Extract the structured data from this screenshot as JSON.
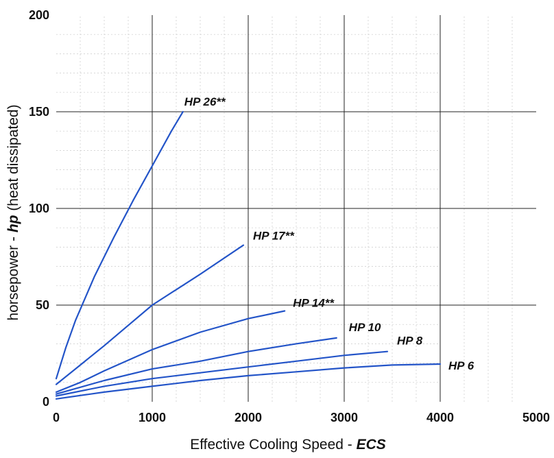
{
  "chart_data": {
    "type": "line",
    "xlim": [
      0,
      5000
    ],
    "ylim": [
      0,
      200
    ],
    "x_ticks": [
      "0",
      "1000",
      "2000",
      "3000",
      "4000",
      "5000"
    ],
    "y_ticks": [
      "0",
      "50",
      "100",
      "150",
      "200"
    ],
    "xlabel": {
      "prefix": "Effective Cooling Speed  - ",
      "emphasis": "ECS"
    },
    "ylabel": {
      "prefix": "horsepower - ",
      "emphasis": "hp",
      "suffix": "  (heat dissipated)"
    },
    "grid": true,
    "line_color": "#2354c8",
    "series": [
      {
        "name": "HP 26**",
        "x": [
          0,
          100,
          200,
          400,
          600,
          800,
          1000,
          1200,
          1320
        ],
        "y": [
          12,
          28,
          42,
          65,
          85,
          104,
          122,
          140,
          150
        ]
      },
      {
        "name": "HP 17**",
        "x": [
          0,
          200,
          500,
          1000,
          1500,
          1950
        ],
        "y": [
          9,
          17,
          29,
          50,
          66,
          81
        ]
      },
      {
        "name": "HP 14**",
        "x": [
          0,
          250,
          500,
          1000,
          1500,
          2000,
          2380
        ],
        "y": [
          5,
          10,
          16,
          27,
          36,
          43,
          47
        ]
      },
      {
        "name": "HP 10",
        "x": [
          0,
          500,
          1000,
          1500,
          2000,
          2500,
          2920
        ],
        "y": [
          4,
          11,
          17,
          21,
          26,
          30,
          33
        ]
      },
      {
        "name": "HP 8",
        "x": [
          0,
          500,
          1000,
          1500,
          2000,
          2500,
          3000,
          3450
        ],
        "y": [
          3,
          8,
          12,
          15,
          18,
          21,
          24,
          26
        ]
      },
      {
        "name": "HP 6",
        "x": [
          0,
          500,
          1000,
          1500,
          2000,
          2500,
          3000,
          3500,
          4000
        ],
        "y": [
          1.5,
          5,
          8,
          11,
          13.5,
          15.5,
          17.5,
          19,
          19.5
        ]
      }
    ]
  }
}
